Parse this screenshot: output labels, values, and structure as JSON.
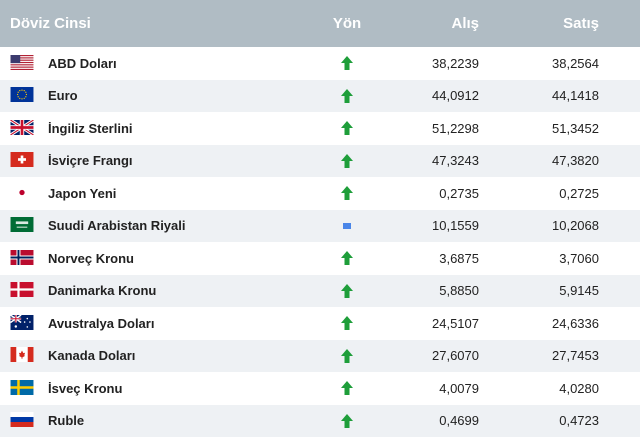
{
  "header": {
    "name": "Döviz Cinsi",
    "direction": "Yön",
    "buy": "Alış",
    "sell": "Satış"
  },
  "rows": [
    {
      "flag_icon": "us-flag-icon",
      "name": "ABD Doları",
      "direction": "up",
      "buy": "38,2239",
      "sell": "38,2564"
    },
    {
      "flag_icon": "eu-flag-icon",
      "name": "Euro",
      "direction": "up",
      "buy": "44,0912",
      "sell": "44,1418"
    },
    {
      "flag_icon": "uk-flag-icon",
      "name": "İngiliz Sterlini",
      "direction": "up",
      "buy": "51,2298",
      "sell": "51,3452"
    },
    {
      "flag_icon": "ch-flag-icon",
      "name": "İsviçre Frangı",
      "direction": "up",
      "buy": "47,3243",
      "sell": "47,3820"
    },
    {
      "flag_icon": "jp-flag-icon",
      "name": "Japon Yeni",
      "direction": "up",
      "buy": "0,2735",
      "sell": "0,2725"
    },
    {
      "flag_icon": "sa-flag-icon",
      "name": "Suudi Arabistan Riyali",
      "direction": "neutral",
      "buy": "10,1559",
      "sell": "10,2068"
    },
    {
      "flag_icon": "no-flag-icon",
      "name": "Norveç Kronu",
      "direction": "up",
      "buy": "3,6875",
      "sell": "3,7060"
    },
    {
      "flag_icon": "dk-flag-icon",
      "name": "Danimarka Kronu",
      "direction": "up",
      "buy": "5,8850",
      "sell": "5,9145"
    },
    {
      "flag_icon": "au-flag-icon",
      "name": "Avustralya Doları",
      "direction": "up",
      "buy": "24,5107",
      "sell": "24,6336"
    },
    {
      "flag_icon": "ca-flag-icon",
      "name": "Kanada Doları",
      "direction": "up",
      "buy": "27,6070",
      "sell": "27,7453"
    },
    {
      "flag_icon": "se-flag-icon",
      "name": "İsveç Kronu",
      "direction": "up",
      "buy": "4,0079",
      "sell": "4,0280"
    },
    {
      "flag_icon": "ru-flag-icon",
      "name": "Ruble",
      "direction": "up",
      "buy": "0,4699",
      "sell": "0,4723"
    }
  ],
  "colors": {
    "header_bg": "#b0bcc4",
    "row_alt": "#eef1f4",
    "up_arrow": "#1e9e3a",
    "neutral": "#4a86e8"
  }
}
